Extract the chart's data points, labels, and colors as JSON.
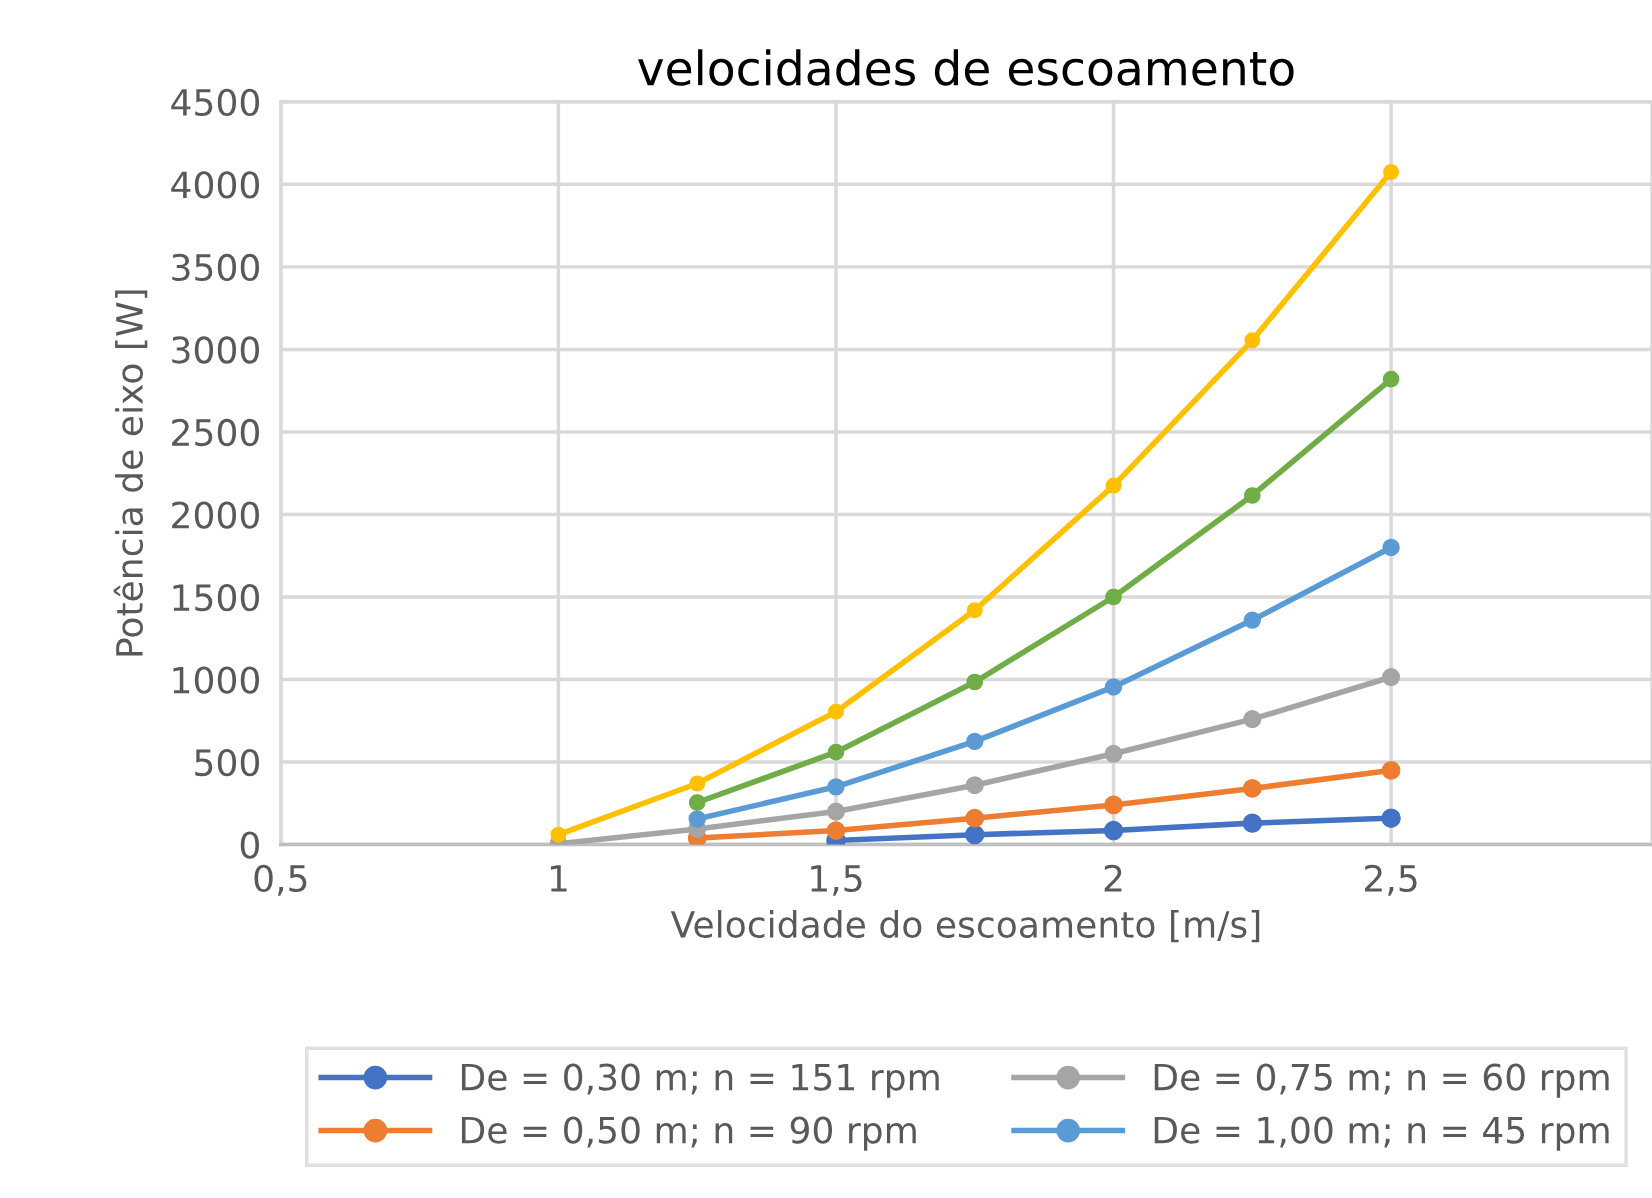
{
  "chart_data": {
    "type": "line",
    "title": "velocidades de escoamento",
    "xlabel": "Velocidade do escoamento [m/s]",
    "ylabel": "Potência de eixo [W]",
    "x": [
      1,
      1.25,
      1.5,
      1.75,
      2,
      2.25,
      2.5
    ],
    "series": [
      {
        "name": "De = 0,30 m; n = 151 rpm",
        "color": "#4472c4",
        "values": [
          null,
          null,
          25,
          60,
          85,
          130,
          160
        ]
      },
      {
        "name": "De = 0,50 m; n = 90 rpm",
        "color": "#ed7d31",
        "values": [
          null,
          40,
          85,
          160,
          240,
          340,
          450
        ]
      },
      {
        "name": "De = 0,75 m; n = 60 rpm",
        "color": "#a5a5a5",
        "values": [
          5,
          95,
          200,
          360,
          550,
          760,
          1015
        ]
      },
      {
        "name": "De = 1,00 m; n = 45 rpm",
        "color": "#5b9bd5",
        "values": [
          null,
          155,
          350,
          625,
          955,
          1360,
          1800
        ]
      },
      {
        "color": "#70ad47",
        "values": [
          null,
          255,
          560,
          985,
          1500,
          2115,
          2820
        ]
      },
      {
        "color": "#ffc000",
        "values": [
          60,
          370,
          805,
          1420,
          2175,
          3055,
          4075
        ]
      }
    ],
    "xlim": [
      0.5,
      2.97
    ],
    "xticks": [
      {
        "value": 0.5,
        "label": "0,5"
      },
      1,
      {
        "value": 1.5,
        "label": "1,5"
      },
      2,
      {
        "value": 2.5,
        "label": "2,5"
      }
    ],
    "ylim": [
      0,
      4500
    ],
    "yticks": [
      0,
      500,
      1000,
      1500,
      2000,
      2500,
      3000,
      3500,
      4000,
      4500
    ],
    "grid": true,
    "legend": "bottom",
    "marker": "circle",
    "line_style": "solid"
  }
}
